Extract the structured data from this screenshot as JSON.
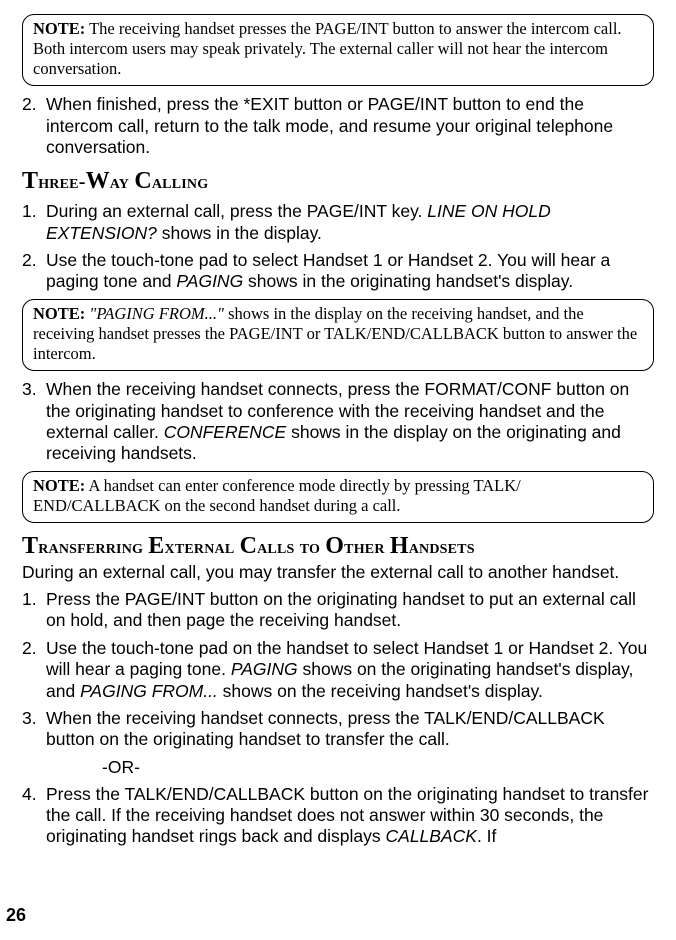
{
  "note1": {
    "label": "NOTE:",
    "text": " The receiving handset presses the PAGE/INT  button to answer the intercom call. Both intercom users may speak privately. The external caller will not hear the intercom conversation."
  },
  "step2top": {
    "num": "2.",
    "text": "When finished, press the *EXIT button or PAGE/INT button to end the intercom call, return to the talk mode, and resume your original telephone conversation."
  },
  "heading_twc": "Three-Way Calling",
  "twc": {
    "s1": {
      "num": "1.",
      "pre": "During an external call, press the PAGE/INT key. ",
      "ital": "LINE ON HOLD EXTENSION?",
      "post": " shows in the display."
    },
    "s2": {
      "num": "2.",
      "pre": "Use the touch-tone pad to select Handset 1 or Handset 2. You will hear a paging tone and ",
      "ital": "PAGING",
      "post": " shows in the originating handset's display."
    },
    "s3": {
      "num": "3.",
      "pre": "When the receiving handset connects, press the FORMAT/CONF button on the originating handset to conference with the receiving handset and the external caller. ",
      "ital": "CONFERENCE",
      "post": " shows in the display on the originating and receiving handsets."
    }
  },
  "note2": {
    "label": "NOTE:",
    "ital": " \"PAGING FROM...\" ",
    "text": "shows in the display on the receiving handset, and the receiving handset presses the PAGE/INT or TALK/END/CALLBACK button to answer the intercom."
  },
  "note3": {
    "label": "NOTE:",
    "text": " A handset can enter conference mode directly by pressing TALK/ END/CALLBACK on the second handset during a call."
  },
  "heading_xfer": "Transferring External Calls to Other Handsets",
  "xfer_intro": "During an external call, you may transfer the external call to another handset.",
  "xfer": {
    "s1": {
      "num": "1.",
      "text": "Press the PAGE/INT button on the originating handset to put an external call on hold, and then page the receiving handset."
    },
    "s2": {
      "num": "2.",
      "pre": "Use the touch-tone pad on the handset to select Handset 1 or Handset 2. You will hear a paging tone. ",
      "ital1": "PAGING",
      "mid": " shows on the originating handset's display, and ",
      "ital2": "PAGING FROM...",
      "post": " shows on the receiving handset's display."
    },
    "s3": {
      "num": "3.",
      "text": "When the receiving handset connects, press the TALK/END/CALLBACK button on the originating handset to transfer the call."
    },
    "or": "-OR-",
    "s4": {
      "num": "4.",
      "pre": "Press the TALK/END/CALLBACK button on the originating handset to transfer the call. If the receiving handset does not answer within 30 seconds, the originating handset rings back and displays ",
      "ital": "CALLBACK",
      "post": ". If"
    }
  },
  "page_number": "26"
}
